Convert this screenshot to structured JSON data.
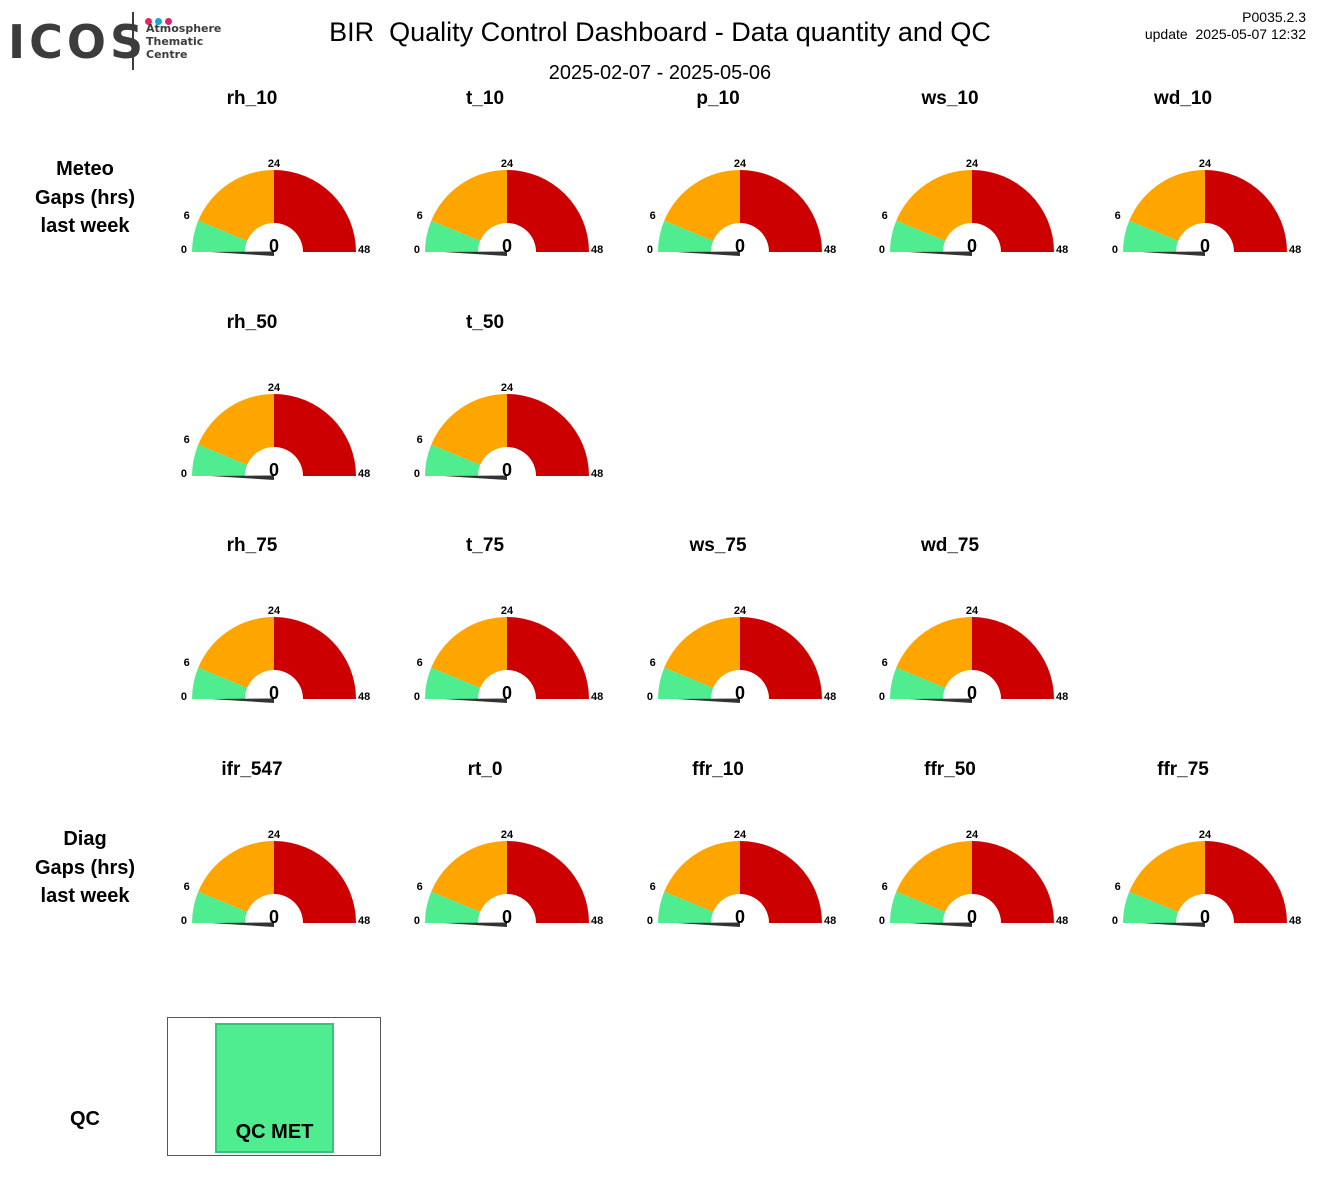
{
  "logo": {
    "text": "ICOS",
    "line1": "Atmosphere",
    "line2": "Thematic",
    "line3": "Centre",
    "dot_colors": [
      "#e8245d",
      "#1aa5e0",
      "#d6246f"
    ]
  },
  "header": {
    "title": "BIR  Quality Control Dashboard - Data quantity and QC",
    "subtitle": "2025-02-07 - 2025-05-06",
    "version": "P0035.2.3",
    "update": "update  2025-05-07 12:32"
  },
  "row_labels": {
    "meteo": [
      "Meteo",
      "Gaps (hrs)",
      "last week"
    ],
    "diag": [
      "Diag",
      "Gaps (hrs)",
      "last week"
    ],
    "qc": "QC"
  },
  "colors": {
    "green": "#4fed8f",
    "orange": "#ffa500",
    "red": "#cc0000",
    "needle": "#333333"
  },
  "chart_data": {
    "type": "gauge",
    "scale": {
      "min": 0,
      "max": 48,
      "ticks": [
        0,
        6,
        24,
        48
      ]
    },
    "bands": [
      {
        "from": 0,
        "to": 6,
        "color": "green"
      },
      {
        "from": 6,
        "to": 24,
        "color": "orange"
      },
      {
        "from": 24,
        "to": 48,
        "color": "red"
      }
    ],
    "gauges": [
      {
        "name": "rh_10",
        "value": 0
      },
      {
        "name": "t_10",
        "value": 0
      },
      {
        "name": "p_10",
        "value": 0
      },
      {
        "name": "ws_10",
        "value": 0
      },
      {
        "name": "wd_10",
        "value": 0
      },
      {
        "name": "rh_50",
        "value": 0
      },
      {
        "name": "t_50",
        "value": 0
      },
      {
        "name": "rh_75",
        "value": 0
      },
      {
        "name": "t_75",
        "value": 0
      },
      {
        "name": "ws_75",
        "value": 0
      },
      {
        "name": "wd_75",
        "value": 0
      },
      {
        "name": "ifr_547",
        "value": 0
      },
      {
        "name": "rt_0",
        "value": 0
      },
      {
        "name": "ffr_10",
        "value": 0
      },
      {
        "name": "ffr_50",
        "value": 0
      },
      {
        "name": "ffr_75",
        "value": 0
      }
    ],
    "qc": {
      "label": "QC MET",
      "color": "#4fed8f"
    }
  }
}
